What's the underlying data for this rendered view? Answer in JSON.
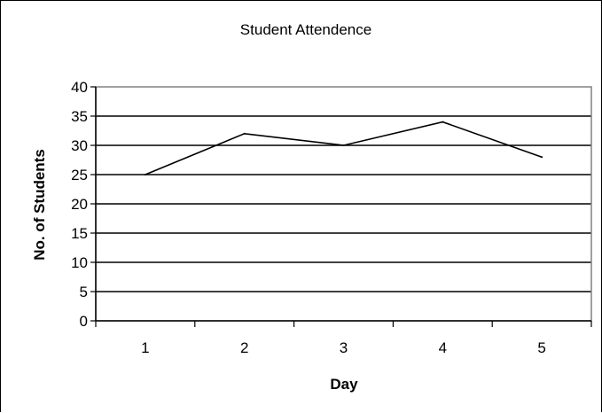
{
  "chart_data": {
    "type": "line",
    "title": "Student Attendence",
    "xlabel": "Day",
    "ylabel": "No. of Students",
    "categories": [
      "1",
      "2",
      "3",
      "4",
      "5"
    ],
    "series": [
      {
        "values": [
          25,
          32,
          30,
          34,
          28
        ]
      }
    ],
    "ylim": [
      0,
      40
    ],
    "yticks": [
      "0",
      "5",
      "10",
      "15",
      "20",
      "25",
      "30",
      "35",
      "40"
    ],
    "grid": true,
    "legend": "none",
    "colors": {
      "line": "#000000",
      "grid": "#000000",
      "plot_border": "#808080",
      "background": "#ffffff"
    }
  }
}
